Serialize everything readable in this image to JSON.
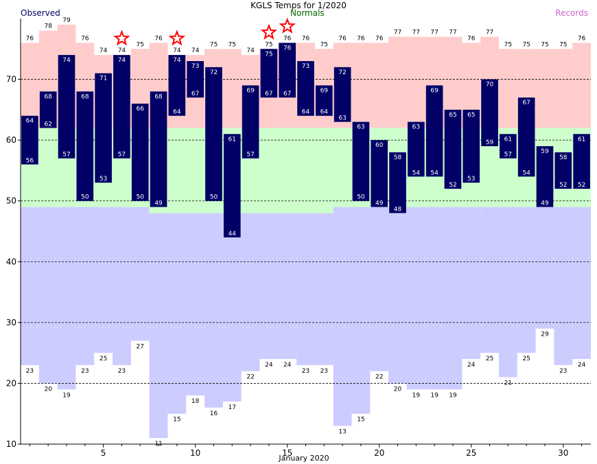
{
  "chart_data": {
    "type": "bar",
    "title": "KGLS Temps for 1/2020",
    "xlabel": "January 2020",
    "ylabel": "",
    "legend": {
      "observed": "Observed",
      "normals": "Normals",
      "records": "Records",
      "placement": "top"
    },
    "colors": {
      "observed": "#000066",
      "normals_band": "#ccffcc",
      "record_high_band": "#ffcccc",
      "record_low_band": "#ccccff",
      "normals_text": "#006600",
      "records_text": "#cc66cc",
      "star": "#ff0000",
      "grid": "#000000"
    },
    "ylim": [
      10,
      80
    ],
    "y_ticks": [
      10,
      20,
      30,
      40,
      50,
      60,
      70
    ],
    "x_range": [
      0.5,
      31.5
    ],
    "x_ticks": [
      5,
      10,
      15,
      20,
      25,
      30
    ],
    "grid": "horizontal dashed",
    "days": [
      1,
      2,
      3,
      4,
      5,
      6,
      7,
      8,
      9,
      10,
      11,
      12,
      13,
      14,
      15,
      16,
      17,
      18,
      19,
      20,
      21,
      22,
      23,
      24,
      25,
      26,
      27,
      28,
      29,
      30,
      31
    ],
    "series": [
      {
        "name": "Observed High",
        "values": [
          64,
          68,
          74,
          68,
          71,
          74,
          66,
          68,
          74,
          73,
          72,
          61,
          69,
          75,
          76,
          73,
          69,
          72,
          63,
          60,
          58,
          63,
          69,
          65,
          65,
          70,
          61,
          67,
          59,
          58,
          61
        ]
      },
      {
        "name": "Observed Low",
        "values": [
          56,
          62,
          57,
          50,
          53,
          57,
          50,
          49,
          64,
          67,
          50,
          44,
          57,
          67,
          67,
          64,
          64,
          63,
          50,
          49,
          48,
          54,
          54,
          52,
          53,
          59,
          57,
          54,
          49,
          52,
          52
        ]
      },
      {
        "name": "Record High",
        "values": [
          76,
          78,
          79,
          76,
          74,
          74,
          75,
          76,
          74,
          74,
          75,
          75,
          74,
          75,
          76,
          76,
          75,
          76,
          76,
          76,
          77,
          77,
          77,
          77,
          76,
          77,
          75,
          75,
          75,
          75,
          76
        ]
      },
      {
        "name": "Record Low",
        "values": [
          23,
          20,
          19,
          23,
          25,
          23,
          27,
          11,
          15,
          18,
          16,
          17,
          22,
          24,
          24,
          23,
          23,
          13,
          15,
          22,
          20,
          19,
          19,
          19,
          24,
          25,
          21,
          25,
          29,
          23,
          24
        ]
      },
      {
        "name": "Normal High",
        "values": [
          62,
          62,
          62,
          62,
          62,
          62,
          62,
          62,
          62,
          62,
          62,
          62,
          62,
          62,
          62,
          62,
          62,
          62,
          62,
          62,
          62,
          62,
          62,
          62,
          62,
          62,
          62,
          62,
          62,
          62,
          62
        ]
      },
      {
        "name": "Normal Low",
        "values": [
          49,
          49,
          49,
          49,
          49,
          49,
          49,
          48,
          48,
          48,
          48,
          48,
          48,
          48,
          48,
          48,
          48,
          49,
          49,
          49,
          49,
          49,
          49,
          49,
          49,
          49,
          49,
          49,
          49,
          49,
          49
        ]
      }
    ],
    "record_set_days": [
      6,
      9,
      14,
      15
    ]
  }
}
